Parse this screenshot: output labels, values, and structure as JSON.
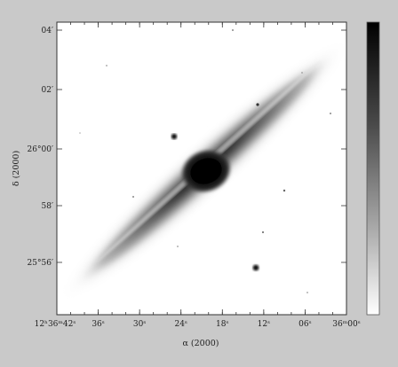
{
  "image": {
    "kind": "astronomical-greyscale-image",
    "subject": "edge-on disk galaxy with bright central bulge",
    "colormap": "grey (white = faint, black = bright)",
    "background_color": "#c9c9c9"
  },
  "axes": {
    "xlabel": "α (2000)",
    "ylabel": "δ (2000)",
    "x_ticks": [
      {
        "label": "12ʰ36ᵐ42ˢ"
      },
      {
        "label": "36ˢ"
      },
      {
        "label": "30ˢ"
      },
      {
        "label": "24ˢ"
      },
      {
        "label": "18ˢ"
      },
      {
        "label": "12ˢ"
      },
      {
        "label": "06ˢ"
      },
      {
        "label": "36ᵐ00ˢ"
      }
    ],
    "y_ticks": [
      {
        "label": "04′"
      },
      {
        "label": "02′"
      },
      {
        "label": "26°00′"
      },
      {
        "label": "58′"
      },
      {
        "label": "25°56′"
      }
    ]
  },
  "colorbar": {
    "orientation": "vertical",
    "top_value": "bright",
    "bottom_value": "faint"
  }
}
